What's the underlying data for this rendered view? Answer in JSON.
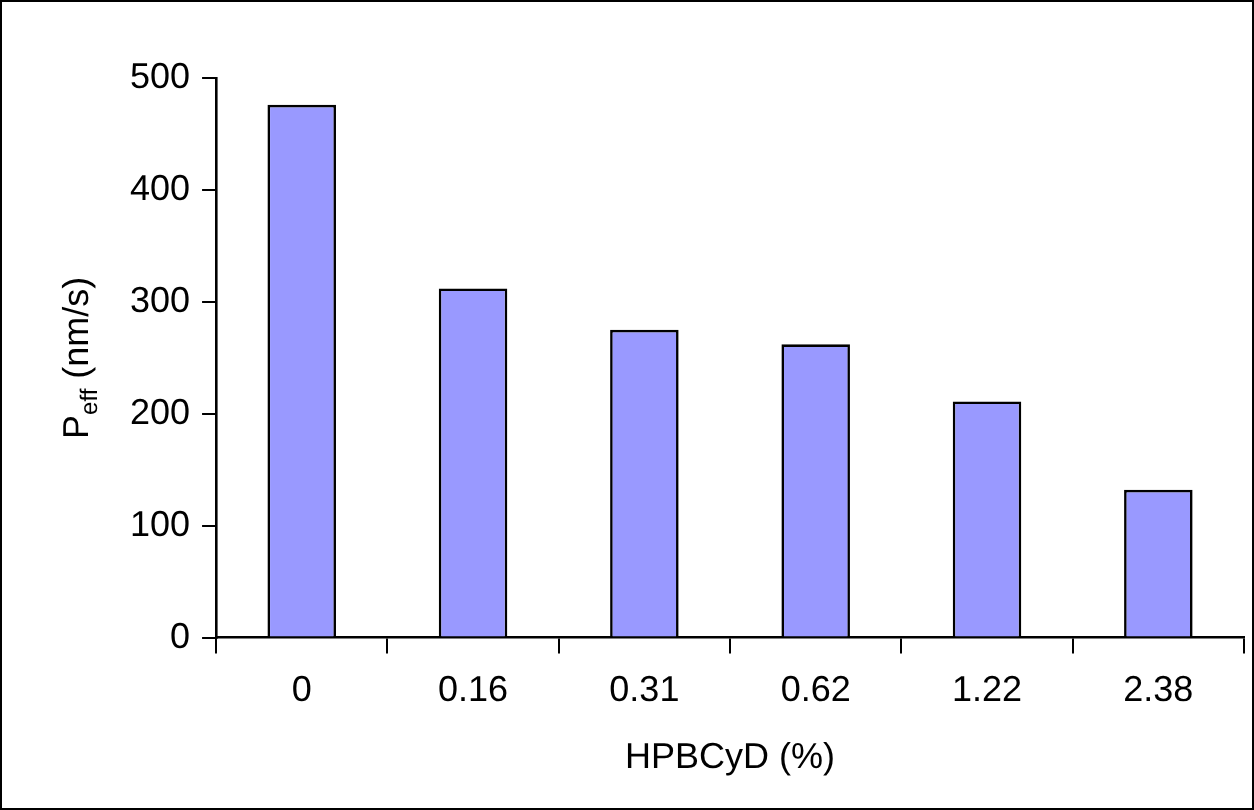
{
  "chart_data": {
    "type": "bar",
    "xlabel": "HPBCyD (%)",
    "ylabel": "P$_{eff}$ (nm/s)",
    "categories": [
      "0",
      "0.16",
      "0.31",
      "0.62",
      "1.22",
      "2.38"
    ],
    "values": [
      476,
      312,
      275,
      262,
      211,
      132
    ],
    "color": "#9999ff",
    "ylim": [
      0,
      500
    ],
    "yticks": [
      0,
      100,
      200,
      300,
      400,
      500
    ],
    "grid": false,
    "legend": false
  }
}
